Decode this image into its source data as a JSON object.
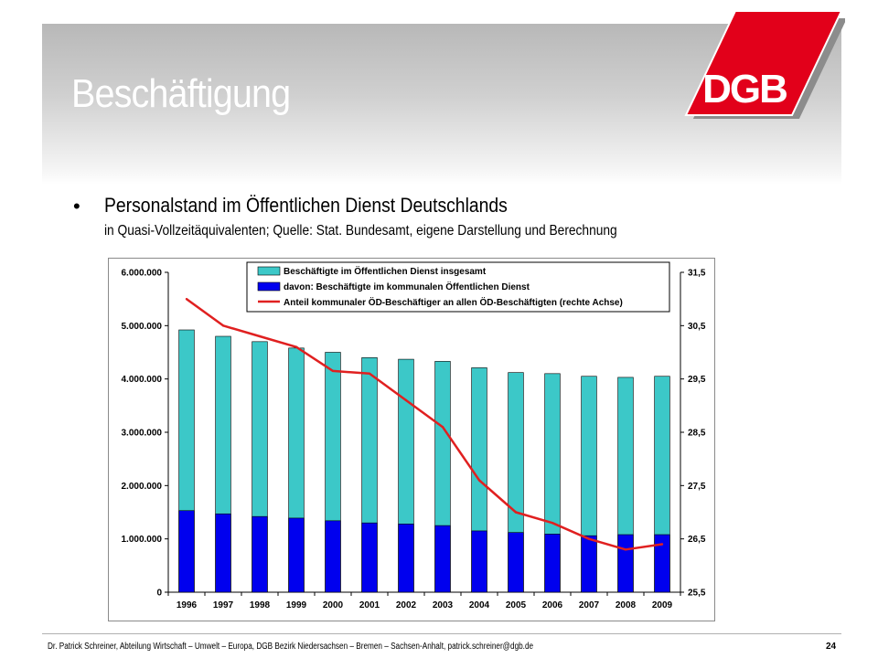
{
  "slide": {
    "title": "Beschäftigung",
    "logo_text": "DGB",
    "bullet_marker": "•",
    "bullet_main": "Personalstand im Öffentlichen Dienst Deutschlands",
    "bullet_sub": "in Quasi-Vollzeitäquivalenten; Quelle: Stat. Bundesamt, eigene Darstellung und Berechnung",
    "footer": "Dr. Patrick Schreiner, Abteilung Wirtschaft – Umwelt – Europa, DGB Bezirk Niedersachsen – Bremen – Sachsen-Anhalt, patrick.schreiner@dgb.de",
    "page_number": "24"
  },
  "colors": {
    "logo_red": "#e2001a",
    "bar_total": "#3cc8c8",
    "bar_municipal": "#0000ee",
    "line_share": "#e02020"
  },
  "chart_data": {
    "type": "bar",
    "categories": [
      "1996",
      "1997",
      "1998",
      "1999",
      "2000",
      "2001",
      "2002",
      "2003",
      "2004",
      "2005",
      "2006",
      "2007",
      "2008",
      "2009"
    ],
    "series": [
      {
        "name": "Beschäftigte im Öffentlichen Dienst insgesamt",
        "type": "bar",
        "axis": "left",
        "values": [
          4920000,
          4800000,
          4700000,
          4580000,
          4500000,
          4400000,
          4370000,
          4330000,
          4210000,
          4120000,
          4100000,
          4050000,
          4030000,
          4050000
        ]
      },
      {
        "name": "davon: Beschäftigte im kommunalen Öffentlichen Dienst",
        "type": "bar",
        "axis": "left",
        "values": [
          1530000,
          1470000,
          1420000,
          1390000,
          1340000,
          1300000,
          1280000,
          1250000,
          1150000,
          1120000,
          1090000,
          1060000,
          1080000,
          1080000
        ]
      },
      {
        "name": "Anteil kommunaler ÖD-Beschäftiger an allen ÖD-Beschäftigten (rechte Achse)",
        "type": "line",
        "axis": "right",
        "values": [
          31.0,
          30.5,
          30.3,
          30.1,
          29.65,
          29.6,
          29.1,
          28.6,
          27.6,
          27.0,
          26.8,
          26.5,
          26.3,
          26.4
        ]
      }
    ],
    "y_left": {
      "ylim": [
        0,
        6000000
      ],
      "ticks": [
        "0",
        "1.000.000",
        "2.000.000",
        "3.000.000",
        "4.000.000",
        "5.000.000",
        "6.000.000"
      ]
    },
    "y_right": {
      "ylim": [
        25.5,
        31.5
      ],
      "ticks": [
        "25,5",
        "26,5",
        "27,5",
        "28,5",
        "29,5",
        "30,5",
        "31,5"
      ]
    },
    "legend": "top"
  }
}
